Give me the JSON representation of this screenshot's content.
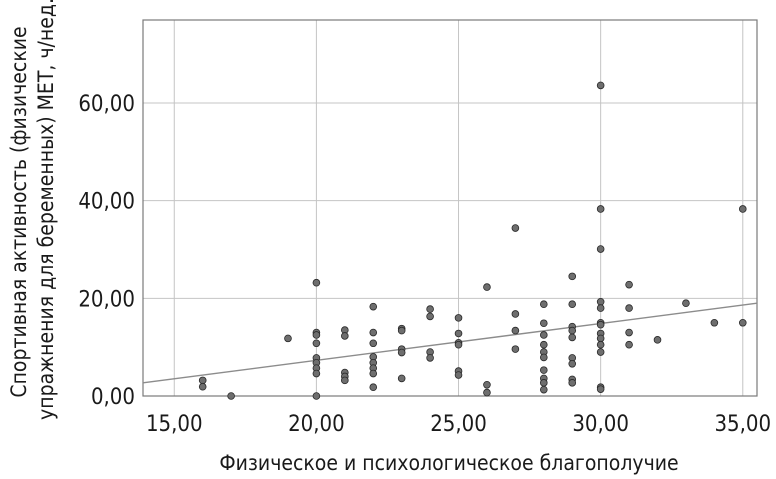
{
  "chart_data": {
    "type": "scatter",
    "title": "",
    "xlabel": "Физическое и психологическое благополучие",
    "ylabel_lines": [
      "Спортивная активность (физические",
      "упражнения для беременных) МЕТ, ч/нед."
    ],
    "xlim": [
      13.9,
      35.5
    ],
    "ylim": [
      0,
      77
    ],
    "x_ticks": [
      15,
      20,
      25,
      30,
      35
    ],
    "x_tick_labels": [
      "15,00",
      "20,00",
      "25,00",
      "30,00",
      "35,00"
    ],
    "y_ticks": [
      0,
      20,
      40,
      60
    ],
    "y_tick_labels": [
      "0,00",
      "20,00",
      "40,00",
      "60,00"
    ],
    "grid": true,
    "legend": "none",
    "marker_color": "#6e6e6e",
    "fit_line": {
      "x": [
        13.9,
        35.5
      ],
      "y": [
        2.7,
        19.0
      ]
    },
    "points": [
      [
        16,
        3.2
      ],
      [
        16,
        1.9
      ],
      [
        17,
        0
      ],
      [
        19,
        11.8
      ],
      [
        20,
        23.2
      ],
      [
        20,
        13.0
      ],
      [
        20,
        12.5
      ],
      [
        20,
        10.8
      ],
      [
        20,
        7.8
      ],
      [
        20,
        6.8
      ],
      [
        20,
        5.7
      ],
      [
        20,
        4.6
      ],
      [
        20,
        0
      ],
      [
        21,
        13.5
      ],
      [
        21,
        12.3
      ],
      [
        21,
        4.8
      ],
      [
        21,
        4.0
      ],
      [
        21,
        3.2
      ],
      [
        22,
        18.3
      ],
      [
        22,
        13.0
      ],
      [
        22,
        10.8
      ],
      [
        22,
        8.0
      ],
      [
        22,
        6.8
      ],
      [
        22,
        5.7
      ],
      [
        22,
        4.6
      ],
      [
        22,
        1.8
      ],
      [
        23,
        13.8
      ],
      [
        23,
        13.4
      ],
      [
        23,
        9.6
      ],
      [
        23,
        8.9
      ],
      [
        23,
        3.6
      ],
      [
        24,
        17.8
      ],
      [
        24,
        16.3
      ],
      [
        24,
        9.0
      ],
      [
        24,
        7.8
      ],
      [
        25,
        16.0
      ],
      [
        25,
        12.8
      ],
      [
        25,
        10.9
      ],
      [
        25,
        10.5
      ],
      [
        25,
        5.1
      ],
      [
        25,
        4.3
      ],
      [
        26,
        22.3
      ],
      [
        26,
        2.3
      ],
      [
        26,
        0.7
      ],
      [
        27,
        34.4
      ],
      [
        27,
        16.8
      ],
      [
        27,
        13.4
      ],
      [
        27,
        9.6
      ],
      [
        28,
        18.8
      ],
      [
        28,
        14.9
      ],
      [
        28,
        12.5
      ],
      [
        28,
        10.5
      ],
      [
        28,
        9.0
      ],
      [
        28,
        7.9
      ],
      [
        28,
        5.3
      ],
      [
        28,
        3.6
      ],
      [
        28,
        2.7
      ],
      [
        28,
        1.3
      ],
      [
        29,
        24.5
      ],
      [
        29,
        18.8
      ],
      [
        29,
        14.2
      ],
      [
        29,
        13.4
      ],
      [
        29,
        12.0
      ],
      [
        29,
        7.8
      ],
      [
        29,
        6.6
      ],
      [
        29,
        3.4
      ],
      [
        29,
        2.7
      ],
      [
        30,
        63.6
      ],
      [
        30,
        38.3
      ],
      [
        30,
        30.1
      ],
      [
        30,
        19.3
      ],
      [
        30,
        18.0
      ],
      [
        30,
        15.0
      ],
      [
        30,
        14.6
      ],
      [
        30,
        12.8
      ],
      [
        30,
        11.8
      ],
      [
        30,
        10.5
      ],
      [
        30,
        9.0
      ],
      [
        30,
        1.8
      ],
      [
        30,
        1.4
      ],
      [
        31,
        22.8
      ],
      [
        31,
        18.0
      ],
      [
        31,
        13.0
      ],
      [
        31,
        10.5
      ],
      [
        32,
        11.5
      ],
      [
        33,
        19.0
      ],
      [
        34,
        15.0
      ],
      [
        35,
        38.3
      ],
      [
        35,
        15.0
      ]
    ]
  }
}
